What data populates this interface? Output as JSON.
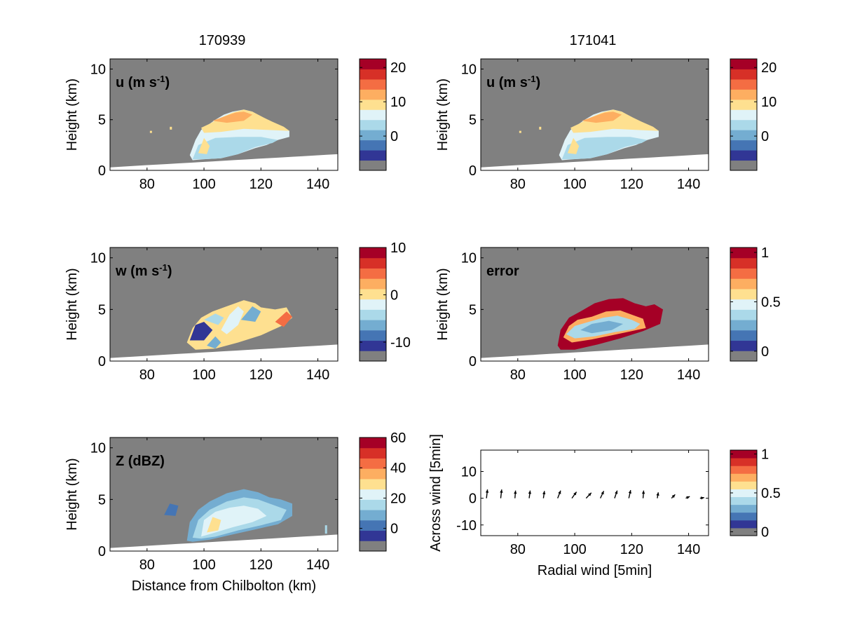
{
  "colors": {
    "gray": "#808080",
    "ground": "#ffffff",
    "scale": [
      "#808080",
      "#313695",
      "#4575b4",
      "#74add1",
      "#abd9e9",
      "#e0f3f8",
      "#fee090",
      "#fdae61",
      "#f46d43",
      "#d73027",
      "#a50026"
    ],
    "scale_reversed_note": "low-to-high"
  },
  "columns": [
    {
      "title": "170939"
    },
    {
      "title": "171041"
    }
  ],
  "chart_data": [
    {
      "type": "heatmap",
      "label": "u (m s",
      "label_sup": "-1",
      "label_close": ")",
      "ylabel": "Height (km)",
      "xlabel": "",
      "xlim": [
        67,
        147
      ],
      "ylim": [
        0,
        11
      ],
      "xticks": [
        "80",
        "100",
        "120",
        "140"
      ],
      "yticks": [
        "0",
        "5",
        "10"
      ],
      "colorbar": {
        "ticks": [
          "20",
          "10",
          "0"
        ],
        "tick_values": [
          20,
          10,
          0
        ],
        "range": [
          -10,
          22.5
        ]
      }
    },
    {
      "type": "heatmap",
      "label": "u (m s",
      "label_sup": "-1",
      "label_close": ")",
      "ylabel": "Height (km)",
      "xlabel": "",
      "xlim": [
        67,
        147
      ],
      "ylim": [
        0,
        11
      ],
      "xticks": [
        "80",
        "100",
        "120",
        "140"
      ],
      "yticks": [
        "0",
        "5",
        "10"
      ],
      "colorbar": {
        "ticks": [
          "20",
          "10",
          "0"
        ],
        "tick_values": [
          20,
          10,
          0
        ],
        "range": [
          -10,
          22.5
        ]
      }
    },
    {
      "type": "heatmap",
      "label": "w (m s",
      "label_sup": "-1",
      "label_close": ")",
      "ylabel": "Height (km)",
      "xlabel": "",
      "xlim": [
        67,
        147
      ],
      "ylim": [
        0,
        11
      ],
      "xticks": [
        "80",
        "100",
        "120",
        "140"
      ],
      "yticks": [
        "0",
        "5",
        "10"
      ],
      "colorbar": {
        "ticks": [
          "10",
          "0",
          "-10"
        ],
        "tick_values": [
          10,
          0,
          -10
        ],
        "range": [
          -14,
          10
        ]
      }
    },
    {
      "type": "heatmap",
      "label": "error",
      "label_sup": "",
      "label_close": "",
      "ylabel": "Height (km)",
      "xlabel": "",
      "xlim": [
        67,
        147
      ],
      "ylim": [
        0,
        11
      ],
      "xticks": [
        "80",
        "100",
        "120",
        "140"
      ],
      "yticks": [
        "0",
        "5",
        "10"
      ],
      "colorbar": {
        "ticks": [
          "1",
          "0.5",
          "0"
        ],
        "tick_values": [
          1,
          0.5,
          0
        ],
        "range": [
          -0.1,
          1.05
        ]
      }
    },
    {
      "type": "heatmap",
      "label": "Z (dBZ)",
      "label_sup": "",
      "label_close": "",
      "ylabel": "Height (km)",
      "xlabel": "Distance from Chilbolton (km)",
      "xlim": [
        67,
        147
      ],
      "ylim": [
        0,
        11
      ],
      "xticks": [
        "80",
        "100",
        "120",
        "140"
      ],
      "yticks": [
        "0",
        "5",
        "10"
      ],
      "colorbar": {
        "ticks": [
          "60",
          "40",
          "20",
          "0"
        ],
        "tick_values": [
          60,
          40,
          20,
          0
        ],
        "range": [
          -15,
          60
        ]
      }
    },
    {
      "type": "scatter",
      "label": "",
      "ylabel": "Across wind [5min]",
      "xlabel": "Radial wind [5min]",
      "xlim": [
        67,
        147
      ],
      "ylim": [
        -14,
        18
      ],
      "xticks": [
        "80",
        "100",
        "120",
        "140"
      ],
      "yticks": [
        "-10",
        "0",
        "10"
      ],
      "arrows": [
        {
          "x": 69,
          "y": 0,
          "dx": 0.5,
          "dy": 4
        },
        {
          "x": 74,
          "y": 0,
          "dx": 0.5,
          "dy": 4
        },
        {
          "x": 79,
          "y": 0,
          "dx": 0.3,
          "dy": 3.5
        },
        {
          "x": 84,
          "y": 0,
          "dx": 0.5,
          "dy": 3.5
        },
        {
          "x": 89,
          "y": 0,
          "dx": 0.5,
          "dy": 3.3
        },
        {
          "x": 94,
          "y": 0,
          "dx": 1.5,
          "dy": 3.5
        },
        {
          "x": 99,
          "y": 0,
          "dx": 2.3,
          "dy": 2.9
        },
        {
          "x": 104,
          "y": 0,
          "dx": 2.6,
          "dy": 2.5
        },
        {
          "x": 109,
          "y": 0,
          "dx": 1.7,
          "dy": 3.3
        },
        {
          "x": 114,
          "y": 0,
          "dx": 1.3,
          "dy": 3.5
        },
        {
          "x": 119,
          "y": 0,
          "dx": 0.9,
          "dy": 3.7
        },
        {
          "x": 124,
          "y": 0,
          "dx": 0.3,
          "dy": 3.5
        },
        {
          "x": 129,
          "y": 0,
          "dx": 0.5,
          "dy": 2.7
        },
        {
          "x": 134,
          "y": 0,
          "dx": 1.8,
          "dy": 1.7
        },
        {
          "x": 139,
          "y": 0,
          "dx": 2.0,
          "dy": 0.8
        },
        {
          "x": 144,
          "y": 0,
          "dx": 2.1,
          "dy": 0.3
        }
      ],
      "colorbar": {
        "ticks": [
          "1",
          "0.5",
          "0"
        ],
        "tick_values": [
          1,
          0.5,
          0
        ],
        "range": [
          -0.05,
          1.05
        ]
      }
    }
  ]
}
